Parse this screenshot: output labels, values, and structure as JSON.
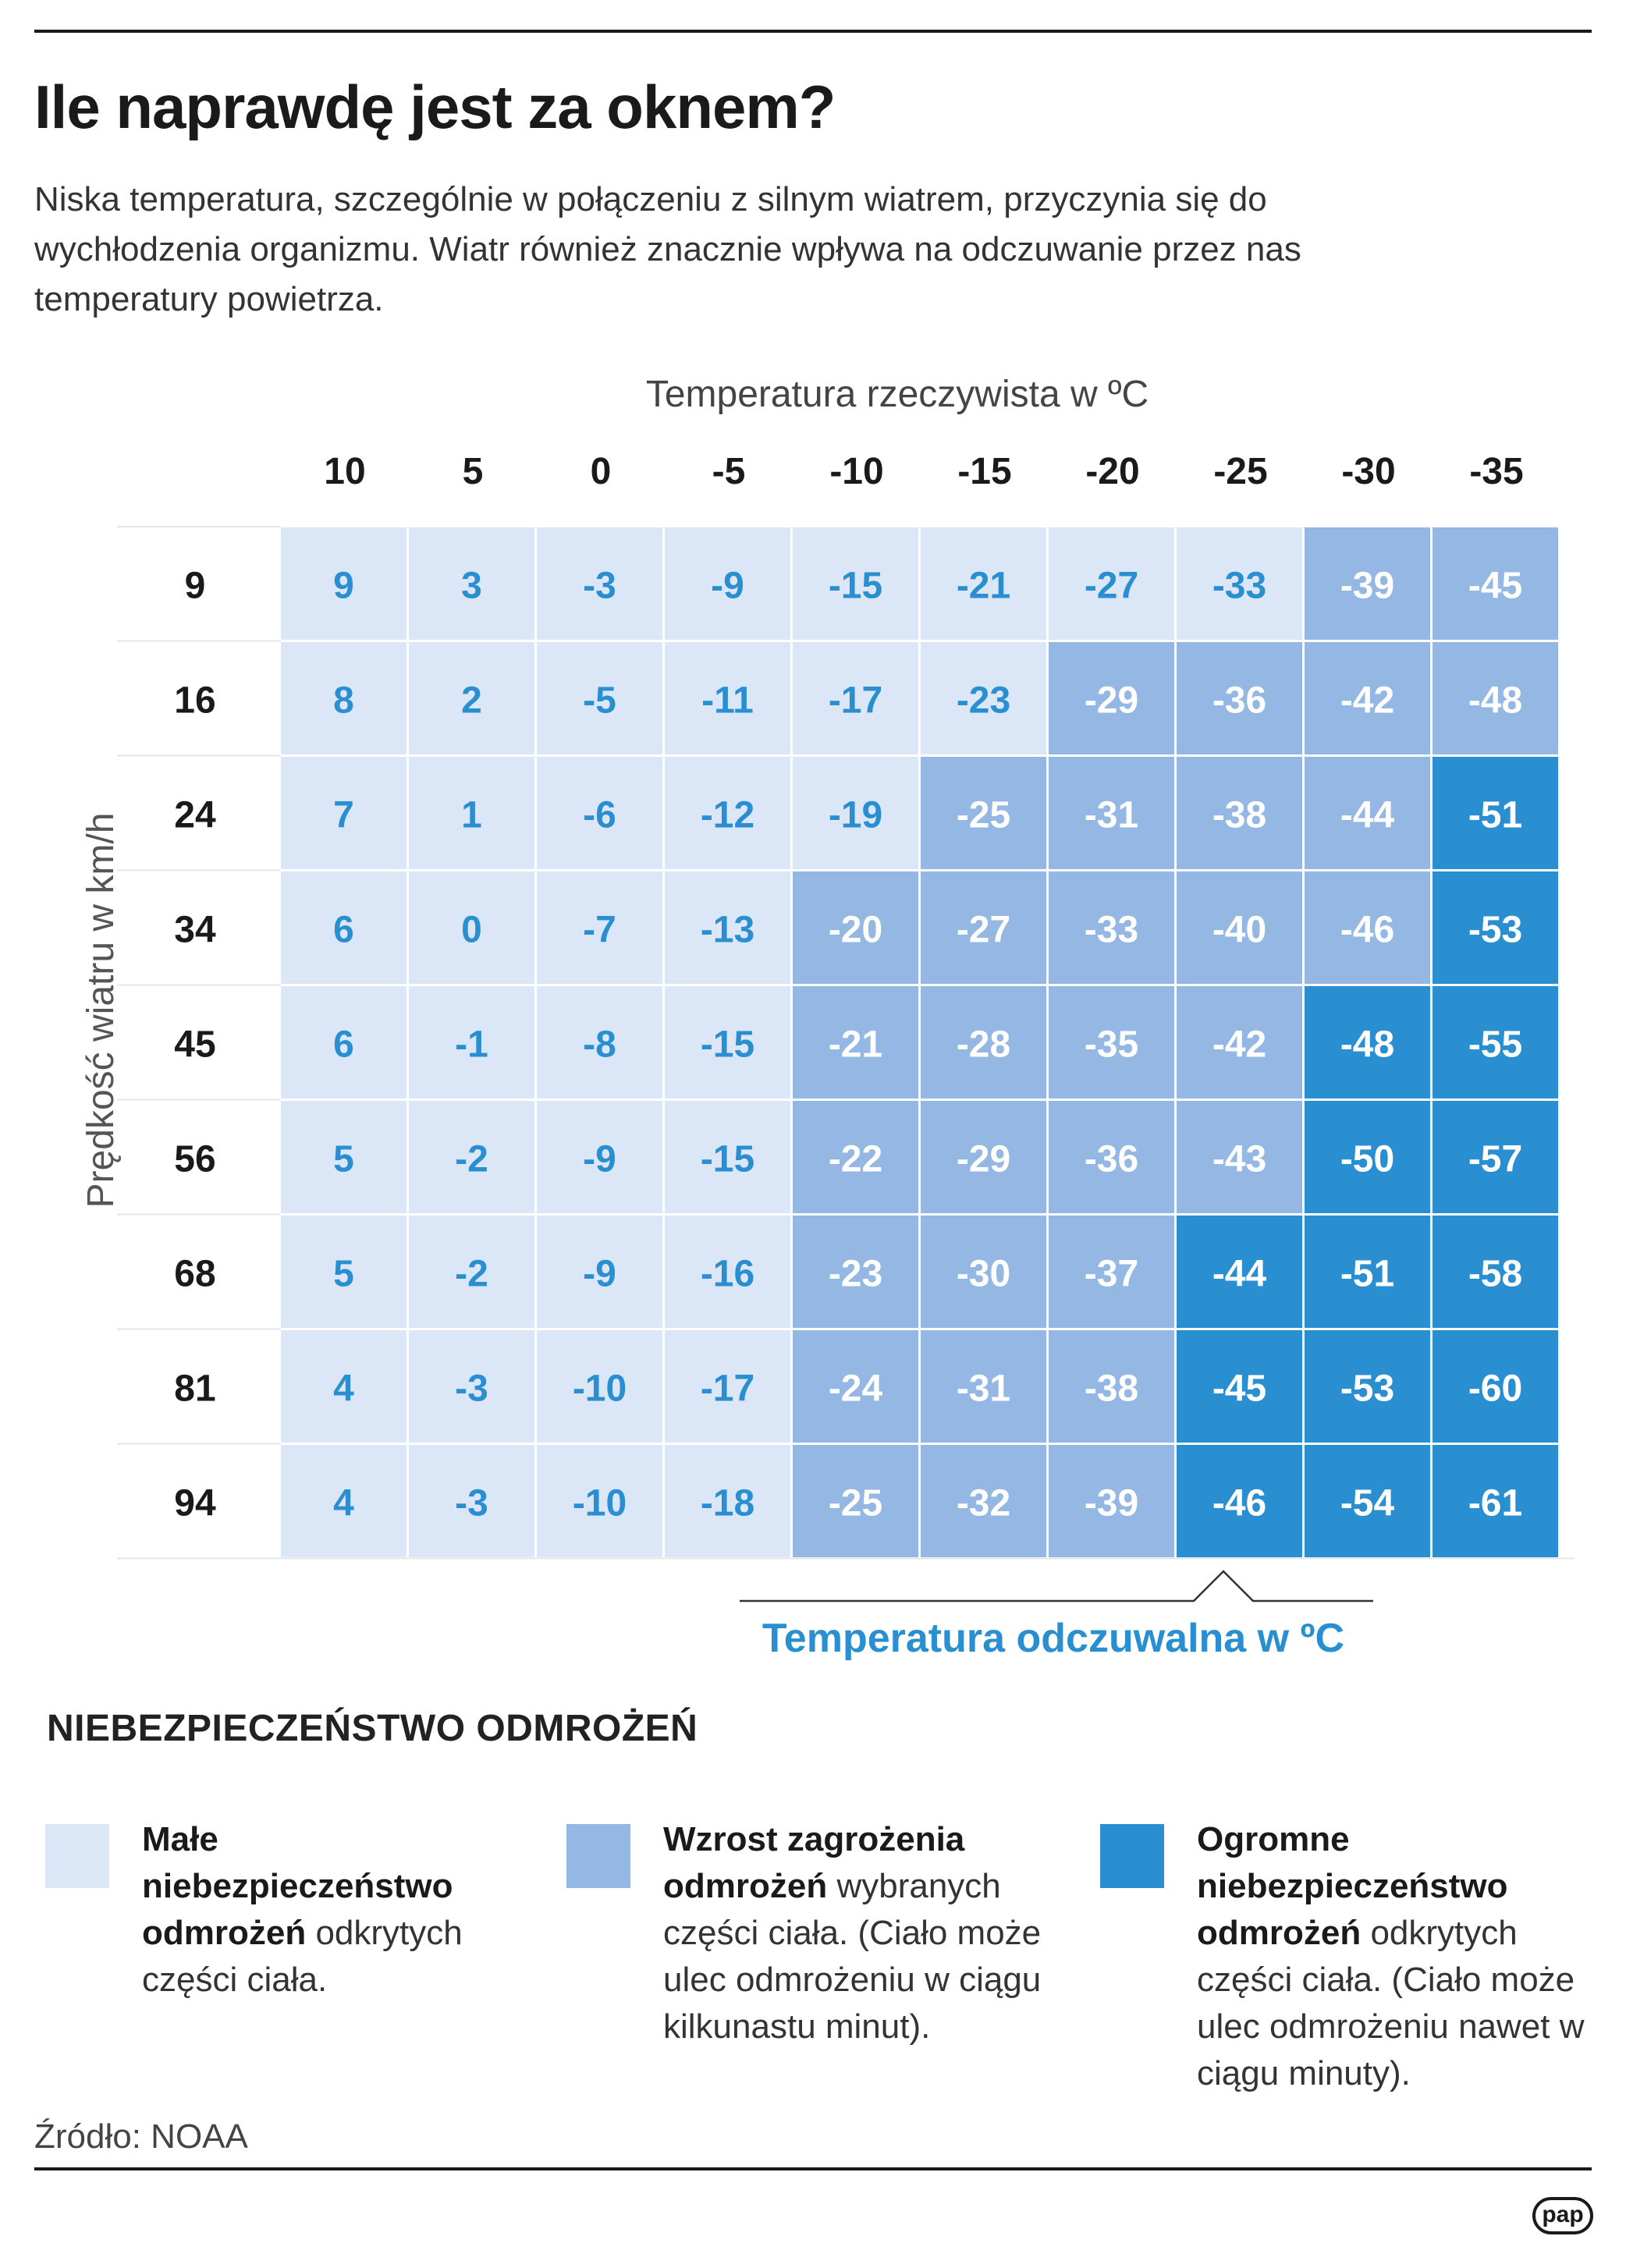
{
  "title": "Ile naprawdę jest za oknem?",
  "subtitle": "Niska temperatura, szczególnie w połączeniu z silnym wiatrem, przyczynia się do wychłodzenia organizmu. Wiatr również znacznie wpływa na odczuwanie przez nas temperatury powietrza.",
  "colors": {
    "low": "#dbe6f6",
    "medium": "#94b8e3",
    "high": "#2a8fd0",
    "value_text": "#2a8fd0",
    "value_text_on_dark": "#ffffff"
  },
  "chart_data": {
    "type": "table",
    "title": "Ile naprawdę jest za oknem?",
    "xlabel": "Temperatura rzeczywista w ºC",
    "ylabel": "Prędkość wiatru w km/h",
    "value_label": "Temperatura odczuwalna w ºC",
    "x": [
      10,
      5,
      0,
      -5,
      -10,
      -15,
      -20,
      -25,
      -30,
      -35
    ],
    "y": [
      9,
      16,
      24,
      34,
      45,
      56,
      68,
      81,
      94
    ],
    "values": [
      [
        9,
        3,
        -3,
        -9,
        -15,
        -21,
        -27,
        -33,
        -39,
        -45
      ],
      [
        8,
        2,
        -5,
        -11,
        -17,
        -23,
        -29,
        -36,
        -42,
        -48
      ],
      [
        7,
        1,
        -6,
        -12,
        -19,
        -25,
        -31,
        -38,
        -44,
        -51
      ],
      [
        6,
        0,
        -7,
        -13,
        -20,
        -27,
        -33,
        -40,
        -46,
        -53
      ],
      [
        6,
        -1,
        -8,
        -15,
        -21,
        -28,
        -35,
        -42,
        -48,
        -55
      ],
      [
        5,
        -2,
        -9,
        -15,
        -22,
        -29,
        -36,
        -43,
        -50,
        -57
      ],
      [
        5,
        -2,
        -9,
        -16,
        -23,
        -30,
        -37,
        -44,
        -51,
        -58
      ],
      [
        4,
        -3,
        -10,
        -17,
        -24,
        -31,
        -38,
        -45,
        -53,
        -60
      ],
      [
        4,
        -3,
        -10,
        -18,
        -25,
        -32,
        -39,
        -46,
        -54,
        -61
      ]
    ],
    "risk": [
      [
        0,
        0,
        0,
        0,
        0,
        0,
        0,
        0,
        1,
        1
      ],
      [
        0,
        0,
        0,
        0,
        0,
        0,
        1,
        1,
        1,
        1
      ],
      [
        0,
        0,
        0,
        0,
        0,
        1,
        1,
        1,
        1,
        2
      ],
      [
        0,
        0,
        0,
        0,
        1,
        1,
        1,
        1,
        1,
        2
      ],
      [
        0,
        0,
        0,
        0,
        1,
        1,
        1,
        1,
        2,
        2
      ],
      [
        0,
        0,
        0,
        0,
        1,
        1,
        1,
        1,
        2,
        2
      ],
      [
        0,
        0,
        0,
        0,
        1,
        1,
        1,
        2,
        2,
        2
      ],
      [
        0,
        0,
        0,
        0,
        1,
        1,
        1,
        2,
        2,
        2
      ],
      [
        0,
        0,
        0,
        0,
        1,
        1,
        1,
        2,
        2,
        2
      ]
    ]
  },
  "legend": {
    "title": "NIEBEZPIECZEŃSTWO ODMROŻEŃ",
    "items": [
      {
        "bold": "Małe niebezpieczeństwo odmrożeń",
        "text": " odkrytych części ciała."
      },
      {
        "bold": "Wzrost zagrożenia odmrożeń",
        "text": " wybranych części ciała. (Ciało może ulec odmrożeniu w ciągu kilkunastu minut)."
      },
      {
        "bold": "Ogromne niebezpieczeństwo odmrożeń",
        "text": " odkrytych części ciała. (Ciało może ulec odmrożeniu nawet w ciągu minuty)."
      }
    ]
  },
  "source": "Źródło: NOAA",
  "logo": "pap"
}
